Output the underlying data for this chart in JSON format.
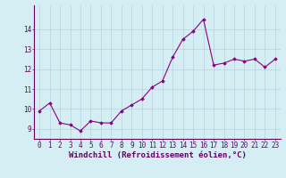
{
  "x": [
    0,
    1,
    2,
    3,
    4,
    5,
    6,
    7,
    8,
    9,
    10,
    11,
    12,
    13,
    14,
    15,
    16,
    17,
    18,
    19,
    20,
    21,
    22,
    23
  ],
  "y": [
    9.9,
    10.3,
    9.3,
    9.2,
    8.9,
    9.4,
    9.3,
    9.3,
    9.9,
    10.2,
    10.5,
    11.1,
    11.4,
    12.6,
    13.5,
    13.9,
    14.5,
    12.2,
    12.3,
    12.5,
    12.4,
    12.5,
    12.1,
    12.5
  ],
  "line_color": "#880088",
  "marker": "D",
  "markersize": 1.8,
  "linewidth": 0.8,
  "bg_color": "#d4eef4",
  "grid_color": "#b8d0dc",
  "xlabel": "Windchill (Refroidissement éolien,°C)",
  "xlabel_fontsize": 6.5,
  "tick_fontsize": 5.5,
  "ylim": [
    8.5,
    15.2
  ],
  "xlim": [
    -0.5,
    23.5
  ],
  "yticks": [
    9,
    10,
    11,
    12,
    13,
    14
  ],
  "xticks": [
    0,
    1,
    2,
    3,
    4,
    5,
    6,
    7,
    8,
    9,
    10,
    11,
    12,
    13,
    14,
    15,
    16,
    17,
    18,
    19,
    20,
    21,
    22,
    23
  ]
}
